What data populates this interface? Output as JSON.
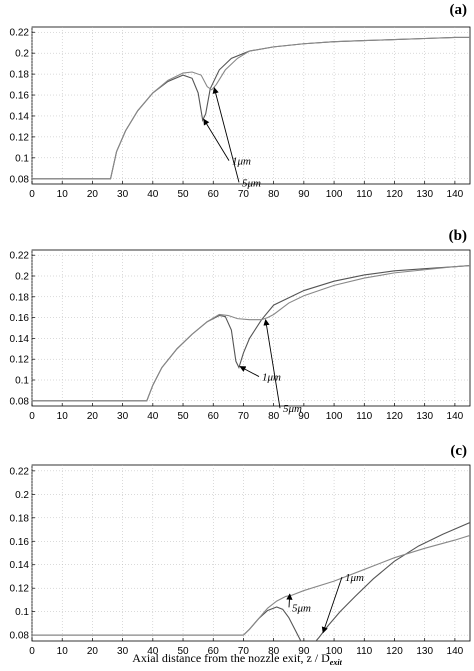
{
  "chart_data": [
    {
      "type": "line",
      "panel_label": "(a)",
      "xlim": [
        0,
        145
      ],
      "ylim": [
        0.075,
        0.225
      ],
      "xticks": [
        0,
        10,
        20,
        30,
        40,
        50,
        60,
        70,
        80,
        90,
        100,
        110,
        120,
        130,
        140
      ],
      "yticks": [
        0.08,
        0.1,
        0.12,
        0.14,
        0.16,
        0.18,
        0.2,
        0.22
      ],
      "ytick_labels": [
        "0.08",
        "0.1",
        "0.12",
        "0.14",
        "0.16",
        "0.18",
        "0.2",
        "0.22"
      ],
      "grid": true,
      "series": [
        {
          "name": "1μm",
          "color": "#555555",
          "x": [
            0,
            25,
            26,
            28,
            31,
            35,
            40,
            45,
            50,
            53,
            55,
            56.5,
            57.5,
            59,
            62,
            66,
            72,
            80,
            90,
            100,
            110,
            120,
            130,
            140,
            145
          ],
          "y": [
            0.08,
            0.08,
            0.08,
            0.106,
            0.126,
            0.145,
            0.162,
            0.173,
            0.179,
            0.176,
            0.162,
            0.136,
            0.142,
            0.166,
            0.184,
            0.195,
            0.202,
            0.206,
            0.209,
            0.211,
            0.212,
            0.213,
            0.214,
            0.215,
            0.215
          ]
        },
        {
          "name": "5μm",
          "color": "#888888",
          "x": [
            0,
            25,
            26,
            28,
            31,
            35,
            40,
            45,
            50,
            53,
            56,
            58,
            59.5,
            61,
            64,
            68,
            72,
            80,
            90,
            100,
            110,
            120,
            130,
            140,
            145
          ],
          "y": [
            0.08,
            0.08,
            0.08,
            0.106,
            0.126,
            0.145,
            0.162,
            0.174,
            0.181,
            0.182,
            0.179,
            0.168,
            0.165,
            0.17,
            0.184,
            0.195,
            0.202,
            0.206,
            0.209,
            0.211,
            0.212,
            0.213,
            0.214,
            0.215,
            0.215
          ]
        }
      ],
      "annotations": [
        {
          "text": "5μm",
          "points_to": [
            60,
            0.167
          ]
        },
        {
          "text": "1μm",
          "points_to": [
            56.5,
            0.137
          ]
        }
      ]
    },
    {
      "type": "line",
      "panel_label": "(b)",
      "xlim": [
        0,
        145
      ],
      "ylim": [
        0.075,
        0.225
      ],
      "xticks": [
        0,
        10,
        20,
        30,
        40,
        50,
        60,
        70,
        80,
        90,
        100,
        110,
        120,
        130,
        140
      ],
      "yticks": [
        0.08,
        0.1,
        0.12,
        0.14,
        0.16,
        0.18,
        0.2,
        0.22
      ],
      "ytick_labels": [
        "0.08",
        "0.1",
        "0.12",
        "0.14",
        "0.16",
        "0.18",
        "0.2",
        "0.22"
      ],
      "grid": true,
      "series": [
        {
          "name": "1μm",
          "color": "#555555",
          "x": [
            0,
            37,
            38,
            40,
            43,
            48,
            53,
            58,
            62,
            64,
            66,
            67.5,
            68.5,
            70,
            72,
            76,
            80,
            90,
            100,
            110,
            120,
            130,
            140,
            145
          ],
          "y": [
            0.08,
            0.08,
            0.08,
            0.095,
            0.112,
            0.13,
            0.144,
            0.156,
            0.162,
            0.161,
            0.148,
            0.118,
            0.112,
            0.126,
            0.14,
            0.158,
            0.172,
            0.186,
            0.195,
            0.201,
            0.205,
            0.207,
            0.209,
            0.21
          ]
        },
        {
          "name": "5μm",
          "color": "#888888",
          "x": [
            0,
            37,
            38,
            40,
            43,
            48,
            53,
            58,
            62,
            65,
            68,
            72,
            76,
            78,
            80,
            85,
            90,
            100,
            110,
            120,
            130,
            140,
            145
          ],
          "y": [
            0.08,
            0.08,
            0.08,
            0.095,
            0.112,
            0.13,
            0.144,
            0.156,
            0.163,
            0.162,
            0.159,
            0.158,
            0.158,
            0.16,
            0.163,
            0.174,
            0.181,
            0.191,
            0.198,
            0.203,
            0.206,
            0.209,
            0.21
          ]
        }
      ],
      "annotations": [
        {
          "text": "5μm",
          "points_to": [
            77,
            0.158
          ]
        },
        {
          "text": "1μm",
          "points_to": [
            68.5,
            0.113
          ]
        }
      ]
    },
    {
      "type": "line",
      "panel_label": "(c)",
      "xlim": [
        0,
        145
      ],
      "ylim": [
        0.075,
        0.225
      ],
      "xticks": [
        0,
        10,
        20,
        30,
        40,
        50,
        60,
        70,
        80,
        90,
        100,
        110,
        120,
        130,
        140
      ],
      "yticks": [
        0.08,
        0.1,
        0.12,
        0.14,
        0.16,
        0.18,
        0.2,
        0.22
      ],
      "ytick_labels": [
        "0.08",
        "0.1",
        "0.12",
        "0.14",
        "0.16",
        "0.18",
        "0.2",
        "0.22"
      ],
      "grid": true,
      "xlabel": "Axial distance from the nozzle exit,  z / D",
      "xlabel_subscript": "exit",
      "series": [
        {
          "name": "1μm",
          "color": "#555555",
          "x": [
            0,
            70,
            72,
            75,
            78,
            81,
            83,
            85,
            87,
            89,
            91,
            93,
            95,
            98,
            102,
            107,
            113,
            120,
            128,
            136,
            145
          ],
          "y": [
            0.08,
            0.08,
            0.085,
            0.094,
            0.101,
            0.104,
            0.102,
            0.095,
            0.085,
            0.075,
            0.071,
            0.072,
            0.078,
            0.088,
            0.1,
            0.113,
            0.128,
            0.143,
            0.156,
            0.166,
            0.176
          ]
        },
        {
          "name": "5μm",
          "color": "#888888",
          "x": [
            0,
            70,
            72,
            75,
            78,
            81,
            84,
            86,
            90,
            100,
            110,
            120,
            130,
            140,
            145
          ],
          "y": [
            0.08,
            0.08,
            0.085,
            0.094,
            0.103,
            0.109,
            0.113,
            0.114,
            0.118,
            0.126,
            0.136,
            0.146,
            0.154,
            0.161,
            0.165
          ]
        }
      ],
      "annotations": [
        {
          "text": "5μm",
          "points_to": [
            85,
            0.115
          ]
        },
        {
          "text": "1μm",
          "points_to": [
            96,
            0.082
          ]
        }
      ]
    }
  ]
}
